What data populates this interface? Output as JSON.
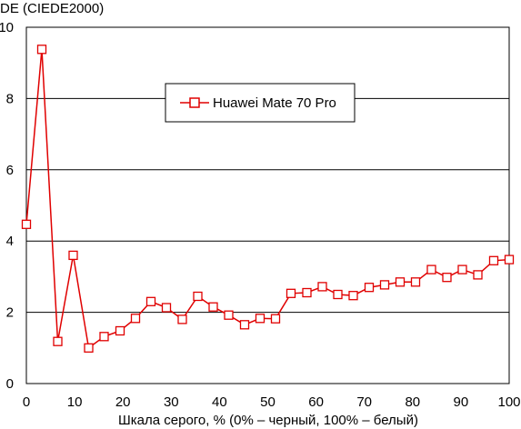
{
  "chart_data": {
    "type": "line",
    "title": "",
    "ylabel": "DE (CIEDE2000)",
    "xlabel": "Шкала серого, % (0% – черный, 100% – белый)",
    "xlim": [
      0,
      100
    ],
    "ylim": [
      0,
      10
    ],
    "xticks": [
      0,
      10,
      20,
      30,
      40,
      50,
      60,
      70,
      80,
      90,
      100
    ],
    "yticks": [
      0,
      2,
      4,
      6,
      8,
      10
    ],
    "grid": "horizontal",
    "legend": "top-center",
    "series": [
      {
        "name": "Huawei Mate 70 Pro",
        "color": "#e00000",
        "marker": "square-open",
        "x": [
          0,
          3.2,
          6.5,
          9.7,
          12.9,
          16.1,
          19.4,
          22.6,
          25.8,
          29.0,
          32.3,
          35.5,
          38.7,
          41.9,
          45.2,
          48.4,
          51.6,
          54.8,
          58.1,
          61.3,
          64.5,
          67.7,
          71.0,
          74.2,
          77.4,
          80.6,
          83.9,
          87.1,
          90.3,
          93.5,
          96.8,
          100
        ],
        "values": [
          4.47,
          9.38,
          1.18,
          3.6,
          1.0,
          1.32,
          1.48,
          1.83,
          2.3,
          2.13,
          1.8,
          2.45,
          2.15,
          1.92,
          1.65,
          1.83,
          1.82,
          2.53,
          2.55,
          2.72,
          2.5,
          2.47,
          2.7,
          2.77,
          2.85,
          2.85,
          3.2,
          2.98,
          3.2,
          3.05,
          3.45,
          3.48
        ]
      }
    ]
  }
}
